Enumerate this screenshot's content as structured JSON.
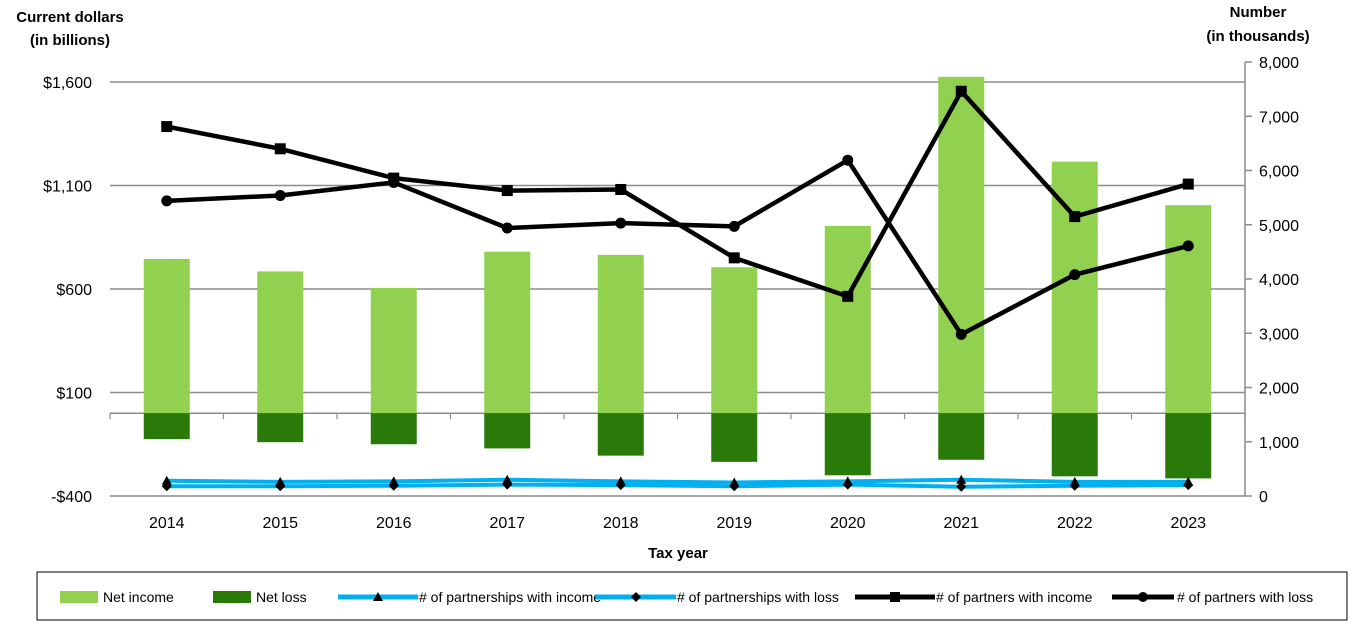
{
  "chart_data": {
    "type": "bar",
    "categories": [
      "2014",
      "2015",
      "2016",
      "2017",
      "2018",
      "2019",
      "2020",
      "2021",
      "2022",
      "2023"
    ],
    "xlabel": "Tax year",
    "left_axis": {
      "title_line1": "Current dollars",
      "title_line2": "(in billions)",
      "ylim": [
        -400,
        1700
      ],
      "ticks": [
        -400,
        100,
        600,
        1100,
        1600
      ],
      "tick_labels": [
        "-$400",
        "$100",
        "$600",
        "$1,100",
        "$1,600"
      ]
    },
    "right_axis": {
      "title_line1": "Number",
      "title_line2": "(in thousands)",
      "ylim": [
        0,
        8000
      ],
      "ticks": [
        0,
        1000,
        2000,
        3000,
        4000,
        5000,
        6000,
        7000,
        8000
      ],
      "tick_labels": [
        "0",
        "1,000",
        "2,000",
        "3,000",
        "4,000",
        "5,000",
        "6,000",
        "7,000",
        "8,000"
      ]
    },
    "grid": true,
    "legend_position": "bottom",
    "series": [
      {
        "name": "Net income",
        "kind": "bar",
        "axis": "left",
        "color": "#92d050",
        "values": [
          745,
          685,
          605,
          780,
          765,
          705,
          905,
          1625,
          1215,
          1005
        ]
      },
      {
        "name": "Net loss",
        "kind": "bar",
        "axis": "left",
        "color": "#2a7a0a",
        "values": [
          -125,
          -140,
          -150,
          -170,
          -205,
          -235,
          -300,
          -225,
          -305,
          -315
        ]
      },
      {
        "name": "# of partnerships with income",
        "kind": "line",
        "axis": "right",
        "color": "#00b0f0",
        "marker": "triangle",
        "values": [
          280,
          260,
          270,
          300,
          270,
          250,
          270,
          300,
          260,
          260
        ]
      },
      {
        "name": "# of partnerships with loss",
        "kind": "line",
        "axis": "right",
        "color": "#00b0f0",
        "marker": "diamond",
        "values": [
          180,
          180,
          190,
          210,
          200,
          180,
          210,
          170,
          190,
          200
        ]
      },
      {
        "name": "# of partners with income",
        "kind": "line",
        "axis": "right",
        "color": "#000000",
        "marker": "square",
        "values": [
          6810,
          6400,
          5860,
          5630,
          5650,
          4390,
          3680,
          7460,
          5150,
          5750
        ]
      },
      {
        "name": "# of partners with loss",
        "kind": "line",
        "axis": "right",
        "color": "#000000",
        "marker": "circle",
        "values": [
          5440,
          5540,
          5780,
          4940,
          5030,
          4970,
          6190,
          2980,
          4080,
          4610
        ]
      }
    ]
  }
}
